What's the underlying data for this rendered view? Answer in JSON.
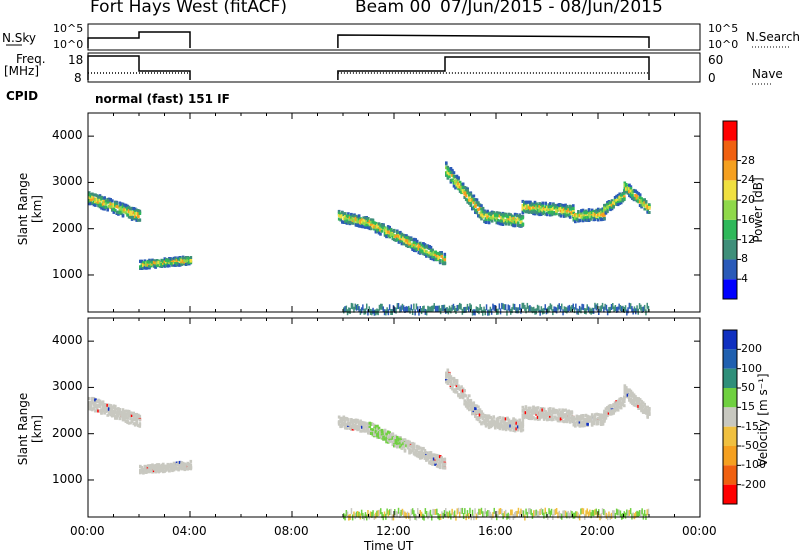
{
  "header": {
    "title": "Fort Hays West (fitACF)",
    "beam": "Beam 00",
    "date_range": "07/Jun/2015 - 08/Jun/2015"
  },
  "aux": {
    "nsky_label": "N.Sky",
    "nsky_ticks": [
      "10^5",
      "10^0"
    ],
    "nsearch_label": "N.Search",
    "nsearch_ticks": [
      "10^5",
      "10^0"
    ],
    "freq_label": "Freq.",
    "freq_unit": "[MHz]",
    "freq_ticks": [
      "18",
      "8"
    ],
    "nave_label": "Nave",
    "nave_ticks": [
      "60",
      "0"
    ],
    "cpid_label": "CPID",
    "cpid_value": "normal (fast) 151 IF"
  },
  "chart_data": [
    {
      "type": "heatmap",
      "name": "power",
      "ylabel": "Slant Range [km]",
      "xlabel": "Time UT",
      "xlim": [
        0,
        24
      ],
      "ylim": [
        200,
        4500
      ],
      "yticks": [
        "1000",
        "2000",
        "3000",
        "4000"
      ],
      "xticks": [
        "00:00",
        "04:00",
        "08:00",
        "12:00",
        "16:00",
        "20:00",
        "00:00"
      ],
      "colorbar": {
        "label": "Power [dB]",
        "ticks": [
          "4",
          "8",
          "12",
          "16",
          "20",
          "24",
          "28"
        ],
        "colors": [
          "#0000ff",
          "#2a5ab8",
          "#3f8f7a",
          "#2fb85a",
          "#8fd84a",
          "#f0e040",
          "#f5a020",
          "#f06010",
          "#ff0000"
        ]
      },
      "echoes": [
        {
          "t0": 0.0,
          "t1": 2.0,
          "r0": 2700,
          "r1": 2300,
          "w": 260
        },
        {
          "t0": 2.0,
          "t1": 4.0,
          "r0": 1250,
          "r1": 1350,
          "w": 170
        },
        {
          "t0": 9.8,
          "t1": 11.0,
          "r0": 2300,
          "r1": 2150,
          "w": 230
        },
        {
          "t0": 11.0,
          "t1": 14.0,
          "r0": 2150,
          "r1": 1350,
          "w": 250
        },
        {
          "t0": 14.0,
          "t1": 15.5,
          "r0": 3300,
          "r1": 2300,
          "w": 320
        },
        {
          "t0": 15.5,
          "t1": 17.0,
          "r0": 2300,
          "r1": 2200,
          "w": 260
        },
        {
          "t0": 17.0,
          "t1": 19.0,
          "r0": 2500,
          "r1": 2400,
          "w": 260
        },
        {
          "t0": 19.0,
          "t1": 20.2,
          "r0": 2300,
          "r1": 2350,
          "w": 240
        },
        {
          "t0": 20.2,
          "t1": 21.0,
          "r0": 2450,
          "r1": 2750,
          "w": 220
        },
        {
          "t0": 21.0,
          "t1": 22.0,
          "r0": 2950,
          "r1": 2450,
          "w": 240
        }
      ],
      "near_range": {
        "t0": 10.0,
        "t1": 22.0,
        "r0": 250,
        "r1": 400
      }
    },
    {
      "type": "heatmap",
      "name": "velocity",
      "ylabel": "Slant Range [km]",
      "xlabel": "Time UT",
      "xlim": [
        0,
        24
      ],
      "ylim": [
        200,
        4500
      ],
      "yticks": [
        "1000",
        "2000",
        "3000",
        "4000"
      ],
      "xticks": [
        "00:00",
        "04:00",
        "08:00",
        "12:00",
        "16:00",
        "20:00",
        "00:00"
      ],
      "colorbar": {
        "label": "Velocity [m s⁻¹]",
        "ticks": [
          "200",
          "100",
          "50",
          "15",
          "-15",
          "-50",
          "-100",
          "-200"
        ],
        "colors": [
          "#1030c0",
          "#2060b0",
          "#2f8f7a",
          "#6fd040",
          "#c8c8c0",
          "#f0c040",
          "#f5a020",
          "#f06010",
          "#ff0000"
        ]
      }
    }
  ]
}
